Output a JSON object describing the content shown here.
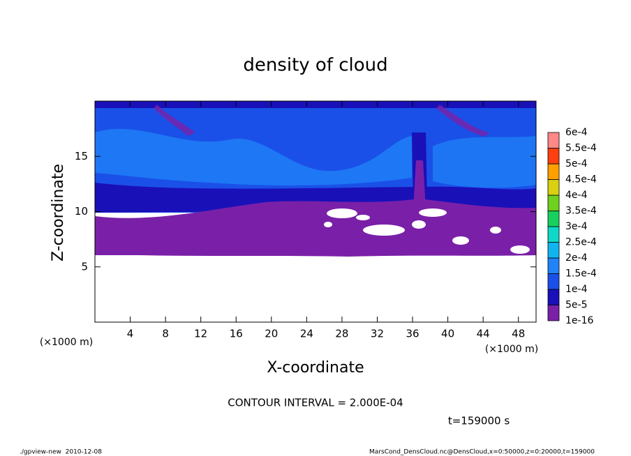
{
  "chart_data": {
    "type": "contour",
    "title": "density of cloud",
    "x_label": "X-coordinate",
    "y_label": "Z-coordinate",
    "x_unit": "(×1000 m)",
    "y_unit": "(×1000 m)",
    "xlim": [
      0,
      50
    ],
    "xticks": [
      4,
      8,
      12,
      16,
      20,
      24,
      28,
      32,
      36,
      40,
      44,
      48
    ],
    "ylim": [
      0,
      20
    ],
    "yticks": [
      5,
      10,
      15
    ],
    "colorbar": {
      "levels": [
        {
          "value": 1e-16,
          "label": "1e-16"
        },
        {
          "value": 5e-05,
          "label": "5e-5"
        },
        {
          "value": 0.0001,
          "label": "1e-4"
        },
        {
          "value": 0.00015,
          "label": "1.5e-4"
        },
        {
          "value": 0.0002,
          "label": "2e-4"
        },
        {
          "value": 0.00025,
          "label": "2.5e-4"
        },
        {
          "value": 0.0003,
          "label": "3e-4"
        },
        {
          "value": 0.00035,
          "label": "3.5e-4"
        },
        {
          "value": 0.0004,
          "label": "4e-4"
        },
        {
          "value": 0.00045,
          "label": "4.5e-4"
        },
        {
          "value": 0.0005,
          "label": "5e-4"
        },
        {
          "value": 0.00055,
          "label": "5.5e-4"
        },
        {
          "value": 0.0006,
          "label": "6e-4"
        }
      ],
      "colors": [
        "#7a20a8",
        "#1a10b8",
        "#1a50e8",
        "#2084f8",
        "#10b4f0",
        "#10d8c8",
        "#18d060",
        "#70d020",
        "#d8d010",
        "#ffa000",
        "#ff4010",
        "#ff8888"
      ]
    },
    "contour_interval": "CONTOUR INTERVAL = 2.000E-04",
    "time": "t=159000 s",
    "footer_left": "./gpview-new  2010-12-08",
    "footer_right": "MarsCond_DensCloud.nc@DensCloud,x=0:50000,z=0:20000,t=159000"
  }
}
